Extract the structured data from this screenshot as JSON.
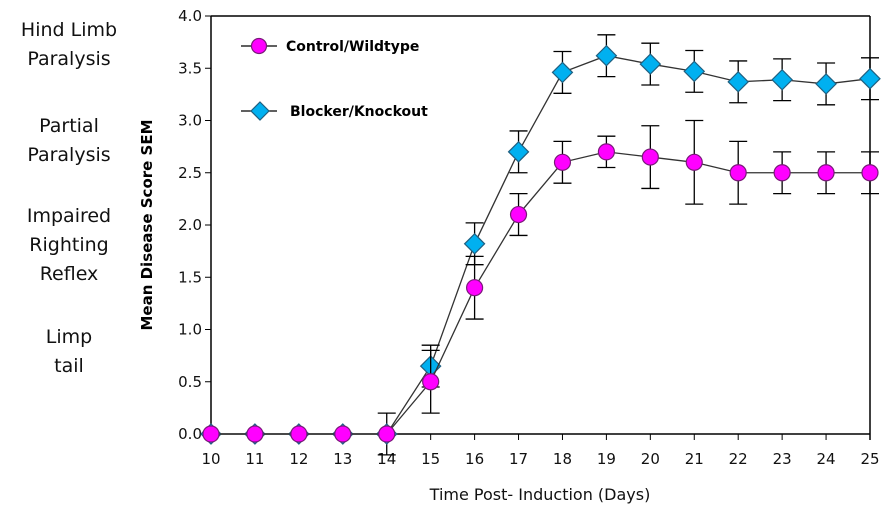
{
  "side_labels": [
    {
      "text": "Hind Limb\nParalysis",
      "score": 4
    },
    {
      "text": "Partial\nParalysis",
      "score": 3
    },
    {
      "text": "Impaired\nRighting\nReflex",
      "score": 2
    },
    {
      "text": "Limp\ntail",
      "score": 1
    }
  ],
  "chart_data": {
    "type": "line",
    "title": "",
    "xlabel": "Time Post- Induction (Days)",
    "ylabel": "Mean Disease Score SEM",
    "xlim": [
      10,
      25
    ],
    "ylim": [
      0,
      4
    ],
    "x": [
      10,
      11,
      12,
      13,
      14,
      15,
      16,
      17,
      18,
      19,
      20,
      21,
      22,
      23,
      24,
      25
    ],
    "x_tick_labels": [
      "10",
      "11",
      "12",
      "13",
      "14",
      "15",
      "16",
      "17",
      "18",
      "19",
      "20",
      "21",
      "22",
      "23",
      "24",
      "25"
    ],
    "y_ticks": [
      0,
      0.5,
      1,
      1.5,
      2,
      2.5,
      3,
      3.5,
      4
    ],
    "y_tick_labels": [
      "0.0",
      "0.5",
      "1.0",
      "1.5",
      "2.0",
      "2.5",
      "3.0",
      "3.5",
      "4.0"
    ],
    "grid": false,
    "legend_position": "top-left",
    "series": [
      {
        "name": "Control/Wildtype",
        "marker": "circle",
        "color": "#ff00ff",
        "values": [
          0,
          0,
          0,
          0,
          0,
          0.5,
          1.4,
          2.1,
          2.6,
          2.7,
          2.65,
          2.6,
          2.5,
          2.5,
          2.5,
          2.5
        ],
        "sem": [
          0,
          0,
          0,
          0,
          0,
          0.3,
          0.3,
          0.2,
          0.2,
          0.15,
          0.3,
          0.4,
          0.3,
          0.2,
          0.2,
          0.2
        ]
      },
      {
        "name": "Blocker/Knockout",
        "marker": "diamond",
        "color": "#00b0f0",
        "values": [
          0,
          0,
          0,
          0,
          0,
          0.65,
          1.82,
          2.7,
          3.46,
          3.62,
          3.54,
          3.47,
          3.37,
          3.39,
          3.35,
          3.4
        ],
        "sem": [
          0,
          0,
          0,
          0,
          0.2,
          0.2,
          0.2,
          0.2,
          0.2,
          0.2,
          0.2,
          0.2,
          0.2,
          0.2,
          0.2,
          0.2
        ]
      }
    ]
  }
}
